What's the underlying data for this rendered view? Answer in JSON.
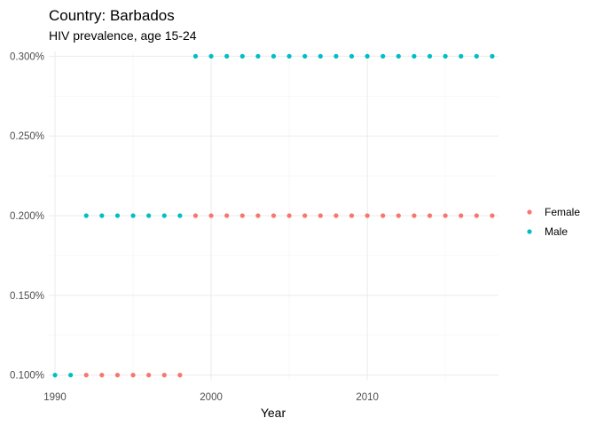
{
  "chart_data": {
    "type": "scatter",
    "title": "Country: Barbados",
    "subtitle": "HIV prevalence, age 15-24",
    "xlabel": "Year",
    "ylabel": "",
    "xlim": [
      1989.6,
      2018.4
    ],
    "ylim": [
      0.097,
      0.303
    ],
    "x_ticks": [
      1990,
      2000,
      2010
    ],
    "x_tick_labels": [
      "1990",
      "2000",
      "2010"
    ],
    "y_ticks": [
      0.1,
      0.15,
      0.2,
      0.25,
      0.3
    ],
    "y_tick_labels": [
      "0.100%",
      "0.150%",
      "0.200%",
      "0.250%",
      "0.300%"
    ],
    "grid": true,
    "legend_position": "right",
    "series": [
      {
        "name": "Female",
        "color": "#F8766D",
        "x": [
          1992,
          1993,
          1994,
          1995,
          1996,
          1997,
          1998,
          1999,
          2000,
          2001,
          2002,
          2003,
          2004,
          2005,
          2006,
          2007,
          2008,
          2009,
          2010,
          2011,
          2012,
          2013,
          2014,
          2015,
          2016,
          2017,
          2018
        ],
        "y": [
          0.1,
          0.1,
          0.1,
          0.1,
          0.1,
          0.1,
          0.1,
          0.2,
          0.2,
          0.2,
          0.2,
          0.2,
          0.2,
          0.2,
          0.2,
          0.2,
          0.2,
          0.2,
          0.2,
          0.2,
          0.2,
          0.2,
          0.2,
          0.2,
          0.2,
          0.2,
          0.2
        ]
      },
      {
        "name": "Male",
        "color": "#00BFC4",
        "x": [
          1990,
          1991,
          1992,
          1993,
          1994,
          1995,
          1996,
          1997,
          1998,
          1999,
          2000,
          2001,
          2002,
          2003,
          2004,
          2005,
          2006,
          2007,
          2008,
          2009,
          2010,
          2011,
          2012,
          2013,
          2014,
          2015,
          2016,
          2017,
          2018
        ],
        "y": [
          0.1,
          0.1,
          0.2,
          0.2,
          0.2,
          0.2,
          0.2,
          0.2,
          0.2,
          0.3,
          0.3,
          0.3,
          0.3,
          0.3,
          0.3,
          0.3,
          0.3,
          0.3,
          0.3,
          0.3,
          0.3,
          0.3,
          0.3,
          0.3,
          0.3,
          0.3,
          0.3,
          0.3,
          0.3
        ]
      }
    ]
  }
}
